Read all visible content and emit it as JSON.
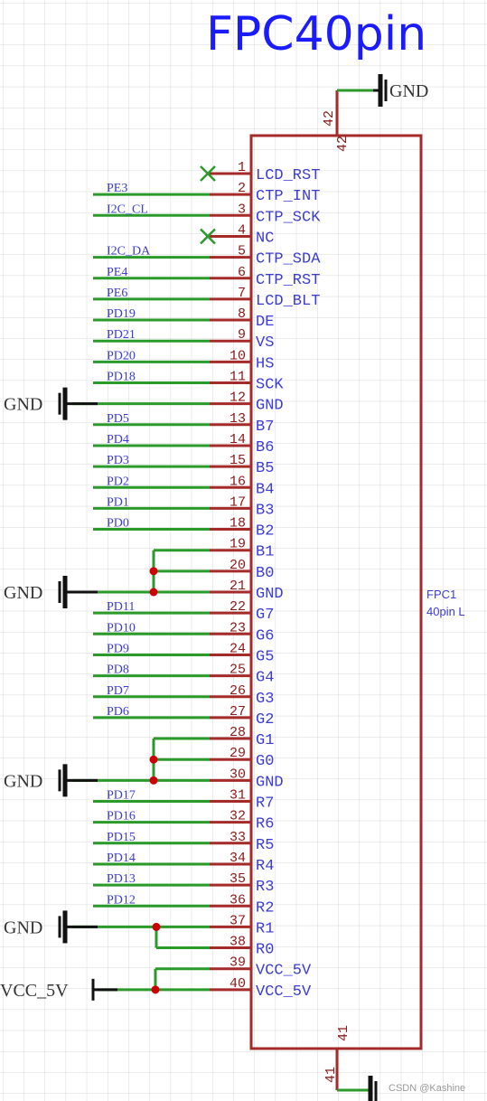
{
  "title": "FPC40pin",
  "part": {
    "designator": "FPC1",
    "value": "40pin L"
  },
  "power_labels": {
    "gnd": "GND",
    "vcc": "VCC_5V"
  },
  "top_pin": "42",
  "bottom_pin": "41",
  "pins": [
    {
      "num": "1",
      "name": "LCD_RST",
      "net": "",
      "nc": true
    },
    {
      "num": "2",
      "name": "CTP_INT",
      "net": "PE3"
    },
    {
      "num": "3",
      "name": "CTP_SCK",
      "net": "I2C_CL"
    },
    {
      "num": "4",
      "name": "NC",
      "net": "",
      "nc": true
    },
    {
      "num": "5",
      "name": "CTP_SDA",
      "net": "I2C_DA"
    },
    {
      "num": "6",
      "name": "CTP_RST",
      "net": "PE4"
    },
    {
      "num": "7",
      "name": "LCD_BLT",
      "net": "PE6"
    },
    {
      "num": "8",
      "name": "DE",
      "net": "PD19"
    },
    {
      "num": "9",
      "name": "VS",
      "net": "PD21"
    },
    {
      "num": "10",
      "name": "HS",
      "net": "PD20"
    },
    {
      "num": "11",
      "name": "SCK",
      "net": "PD18"
    },
    {
      "num": "12",
      "name": "GND",
      "net": "",
      "gnd": true
    },
    {
      "num": "13",
      "name": "B7",
      "net": "PD5"
    },
    {
      "num": "14",
      "name": "B6",
      "net": "PD4"
    },
    {
      "num": "15",
      "name": "B5",
      "net": "PD3"
    },
    {
      "num": "16",
      "name": "B4",
      "net": "PD2"
    },
    {
      "num": "17",
      "name": "B3",
      "net": "PD1"
    },
    {
      "num": "18",
      "name": "B2",
      "net": "PD0"
    },
    {
      "num": "19",
      "name": "B1",
      "net": ""
    },
    {
      "num": "20",
      "name": "B0",
      "net": ""
    },
    {
      "num": "21",
      "name": "GND",
      "net": "",
      "gnd": true
    },
    {
      "num": "22",
      "name": "G7",
      "net": "PD11"
    },
    {
      "num": "23",
      "name": "G6",
      "net": "PD10"
    },
    {
      "num": "24",
      "name": "G5",
      "net": "PD9"
    },
    {
      "num": "25",
      "name": "G4",
      "net": "PD8"
    },
    {
      "num": "26",
      "name": "G3",
      "net": "PD7"
    },
    {
      "num": "27",
      "name": "G2",
      "net": "PD6"
    },
    {
      "num": "28",
      "name": "G1",
      "net": ""
    },
    {
      "num": "29",
      "name": "G0",
      "net": ""
    },
    {
      "num": "30",
      "name": "GND",
      "net": "",
      "gnd": true
    },
    {
      "num": "31",
      "name": "R7",
      "net": "PD17"
    },
    {
      "num": "32",
      "name": "R6",
      "net": "PD16"
    },
    {
      "num": "33",
      "name": "R5",
      "net": "PD15"
    },
    {
      "num": "34",
      "name": "R4",
      "net": "PD14"
    },
    {
      "num": "35",
      "name": "R3",
      "net": "PD13"
    },
    {
      "num": "36",
      "name": "R2",
      "net": "PD12"
    },
    {
      "num": "37",
      "name": "R1",
      "net": "",
      "gnd": true
    },
    {
      "num": "38",
      "name": "R0",
      "net": ""
    },
    {
      "num": "39",
      "name": "VCC_5V",
      "net": ""
    },
    {
      "num": "40",
      "name": "VCC_5V",
      "net": "",
      "vcc": true
    }
  ],
  "watermark": "CSDN @Kashine",
  "colors": {
    "wire": "#2a9a2a",
    "pin": "#a52a2a",
    "text": "#3b3bd6",
    "grid": "#d8d8d8",
    "title": "#1b1bff",
    "junction": "#cc0000"
  }
}
